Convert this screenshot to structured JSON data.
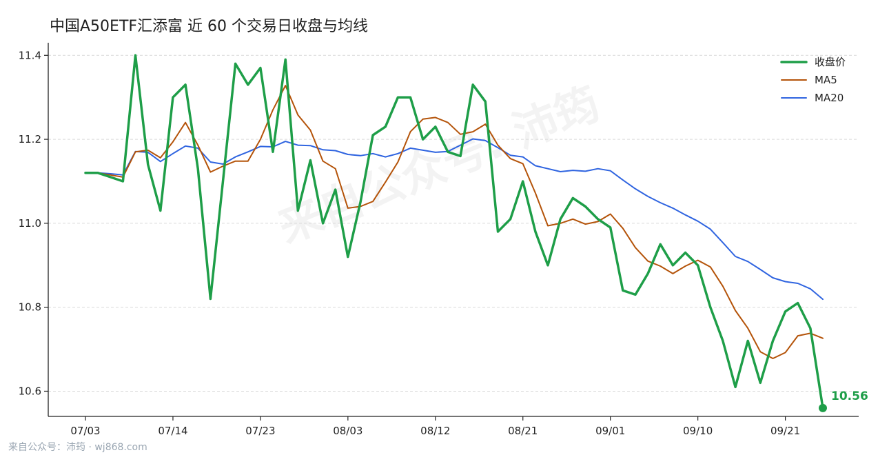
{
  "watermark": "来自公众号: 沛筠",
  "footer": "来自公众号：沛筠 · wj868.com",
  "chart_data": {
    "type": "line",
    "title": "中国A50ETF汇添富 近 60 个交易日收盘与均线",
    "x": [
      "07/03",
      "07/04",
      "07/07",
      "07/08",
      "07/09",
      "07/10",
      "07/11",
      "07/14",
      "07/15",
      "07/16",
      "07/17",
      "07/18",
      "07/21",
      "07/22",
      "07/23",
      "07/24",
      "07/25",
      "07/28",
      "07/29",
      "07/30",
      "07/31",
      "08/01",
      "08/04",
      "08/05",
      "08/06",
      "08/07",
      "08/08",
      "08/11",
      "08/12",
      "08/13",
      "08/14",
      "08/15",
      "08/18",
      "08/19",
      "08/20",
      "08/21",
      "08/22",
      "08/25",
      "08/26",
      "08/27",
      "08/28",
      "08/29",
      "09/01",
      "09/02",
      "09/03",
      "09/04",
      "09/05",
      "09/08",
      "09/09",
      "09/10",
      "09/11",
      "09/12",
      "09/15",
      "09/16",
      "09/17",
      "09/18",
      "09/19",
      "09/22",
      "09/23",
      "09/24"
    ],
    "xticks": [
      "07/03",
      "07/14",
      "07/23",
      "08/03",
      "08/12",
      "08/21",
      "09/01",
      "09/10",
      "09/21"
    ],
    "xtick_index": [
      0,
      7,
      14,
      21,
      28,
      35,
      42,
      49,
      56
    ],
    "yticks": [
      10.6,
      10.8,
      11.0,
      11.2,
      11.4
    ],
    "ylim": [
      10.54,
      11.43
    ],
    "grid": true,
    "legend_position": "top-right",
    "last_value_label": "10.56",
    "series": [
      {
        "name": "收盘价",
        "color": "#1e9e48",
        "width": 3.5,
        "values": [
          11.12,
          11.12,
          11.11,
          11.1,
          11.4,
          11.14,
          11.03,
          11.3,
          11.33,
          11.13,
          10.82,
          11.1,
          11.38,
          11.33,
          11.37,
          11.17,
          11.39,
          11.03,
          11.15,
          11.0,
          11.08,
          10.92,
          11.05,
          11.21,
          11.23,
          11.3,
          11.3,
          11.2,
          11.23,
          11.17,
          11.16,
          11.33,
          11.29,
          10.98,
          11.01,
          11.1,
          10.98,
          10.9,
          11.01,
          11.06,
          11.04,
          11.01,
          10.99,
          10.84,
          10.83,
          10.88,
          10.95,
          10.9,
          10.93,
          10.9,
          10.8,
          10.72,
          10.61,
          10.72,
          10.62,
          10.72,
          10.79,
          10.81,
          10.75,
          10.56
        ]
      },
      {
        "name": "MA5",
        "color": "#b45309",
        "width": 2,
        "values": [
          11.12,
          11.12,
          11.115,
          11.11,
          11.17,
          11.174,
          11.156,
          11.194,
          11.24,
          11.186,
          11.122,
          11.136,
          11.148,
          11.148,
          11.2,
          11.27,
          11.328,
          11.258,
          11.222,
          11.148,
          11.13,
          11.036,
          11.04,
          11.052,
          11.098,
          11.146,
          11.218,
          11.248,
          11.252,
          11.24,
          11.212,
          11.218,
          11.236,
          11.186,
          11.154,
          11.142,
          11.072,
          10.994,
          11.0,
          11.01,
          10.998,
          11.004,
          11.022,
          10.988,
          10.942,
          10.91,
          10.898,
          10.88,
          10.898,
          10.912,
          10.896,
          10.85,
          10.792,
          10.75,
          10.694,
          10.678,
          10.692,
          10.732,
          10.738,
          10.726
        ]
      },
      {
        "name": "MA20",
        "color": "#2f64e0",
        "width": 2,
        "values": [
          11.12,
          11.12,
          11.118,
          11.115,
          11.171,
          11.169,
          11.147,
          11.166,
          11.184,
          11.179,
          11.146,
          11.141,
          11.158,
          11.17,
          11.183,
          11.182,
          11.195,
          11.186,
          11.185,
          11.175,
          11.173,
          11.164,
          11.161,
          11.166,
          11.158,
          11.166,
          11.179,
          11.174,
          11.169,
          11.171,
          11.186,
          11.201,
          11.197,
          11.18,
          11.162,
          11.158,
          11.137,
          11.13,
          11.123,
          11.126,
          11.124,
          11.13,
          11.125,
          11.103,
          11.082,
          11.064,
          11.049,
          11.036,
          11.02,
          11.005,
          10.986,
          10.954,
          10.921,
          10.909,
          10.89,
          10.87,
          10.861,
          10.857,
          10.844,
          10.819
        ]
      }
    ]
  }
}
